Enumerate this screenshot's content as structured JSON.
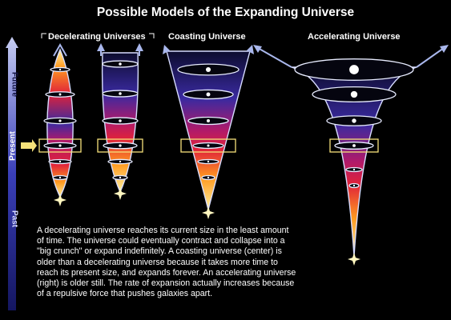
{
  "title": "Possible Models of the Expanding Universe",
  "models": {
    "decelerating_label": "Decelerating Universes",
    "coasting_label": "Coasting Universe",
    "accelerating_label": "Accelerating Universe"
  },
  "time_axis": {
    "future": "Future",
    "present": "Present",
    "past": "Past"
  },
  "caption_lines": [
    "A decelerating universe reaches its current size in the least amount",
    "of time. The universe could eventually contract and collapse into a",
    "\"big crunch\" or expand indefinitely. A coasting universe (center) is",
    "older than a decelerating universe because it takes more time to",
    "reach its present size, and expands forever. An accelerating universe",
    "(right) is older still. The rate of expansion actually increases because",
    "of a repulsive force that pushes galaxies apart."
  ],
  "colors": {
    "background": "#000000",
    "arrow": "#a9b7ec",
    "present_marker": "#f6e27a",
    "shape_top": "#0c0c2e",
    "shape_mid": "#d8123a",
    "shape_bottom": "#fff2a0"
  },
  "icons": [
    "sparkle-icon",
    "galaxy-disk-icon",
    "present-arrow-icon"
  ]
}
